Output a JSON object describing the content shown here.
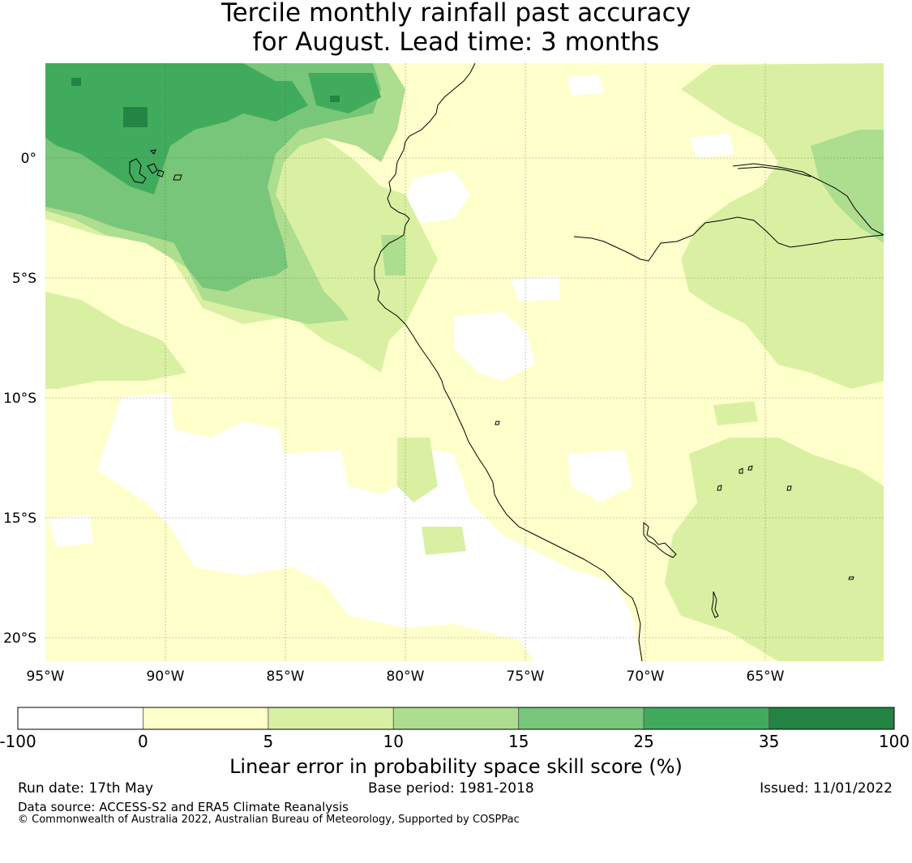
{
  "title_line1": "Tercile monthly rainfall past accuracy",
  "title_line2": "for August. Lead time: 3 months",
  "map": {
    "lat_labels": [
      "0°",
      "5°S",
      "10°S",
      "15°S",
      "20°S"
    ],
    "lon_labels": [
      "95°W",
      "90°W",
      "85°W",
      "80°W",
      "75°W",
      "70°W",
      "65°W"
    ]
  },
  "colorbar": {
    "title": "Linear error in probability space skill score (%)",
    "bins": [
      {
        "from": -100,
        "to": 0,
        "color": "#ffffff"
      },
      {
        "from": 0,
        "to": 5,
        "color": "#ffffcc"
      },
      {
        "from": 5,
        "to": 10,
        "color": "#d9f0a3"
      },
      {
        "from": 10,
        "to": 15,
        "color": "#addd8e"
      },
      {
        "from": 15,
        "to": 25,
        "color": "#78c679"
      },
      {
        "from": 25,
        "to": 35,
        "color": "#41ab5d"
      },
      {
        "from": 35,
        "to": 100,
        "color": "#238443"
      }
    ],
    "tick_labels": [
      "-100",
      "0",
      "5",
      "10",
      "15",
      "25",
      "35",
      "100"
    ]
  },
  "footer": {
    "run_date": "Run date: 17th May",
    "base_period": "Base period: 1981-2018",
    "issued": "Issued: 11/01/2022",
    "data_source": "Data source: ACCESS-S2 and ERA5 Climate Reanalysis",
    "copyright": "© Commonwealth of Australia 2022, Australian Bureau of Meteorology, Supported by COSPPac"
  }
}
